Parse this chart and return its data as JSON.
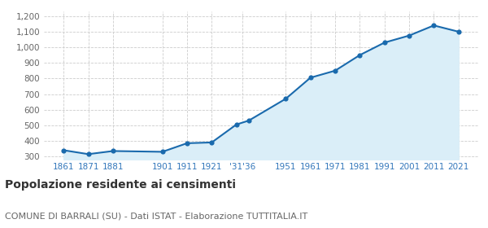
{
  "years": [
    1861,
    1871,
    1881,
    1901,
    1911,
    1921,
    1931,
    1936,
    1951,
    1961,
    1971,
    1981,
    1991,
    2001,
    2011,
    2021
  ],
  "values": [
    340,
    315,
    335,
    330,
    385,
    390,
    505,
    530,
    670,
    805,
    850,
    950,
    1030,
    1075,
    1140,
    1100
  ],
  "y_ticks": [
    300,
    400,
    500,
    600,
    700,
    800,
    900,
    1000,
    1100,
    1200
  ],
  "ylim": [
    280,
    1230
  ],
  "xlim": [
    1853,
    2029
  ],
  "line_color": "#1a6aad",
  "fill_color": "#daeef8",
  "marker_color": "#1a6aad",
  "grid_color": "#cccccc",
  "background_color": "#ffffff",
  "title": "Popolazione residente ai censimenti",
  "subtitle": "COMUNE DI BARRALI (SU) - Dati ISTAT - Elaborazione TUTTITALIA.IT",
  "title_fontsize": 10,
  "subtitle_fontsize": 8,
  "tick_label_color": "#3377bb",
  "ytick_label_color": "#666666"
}
